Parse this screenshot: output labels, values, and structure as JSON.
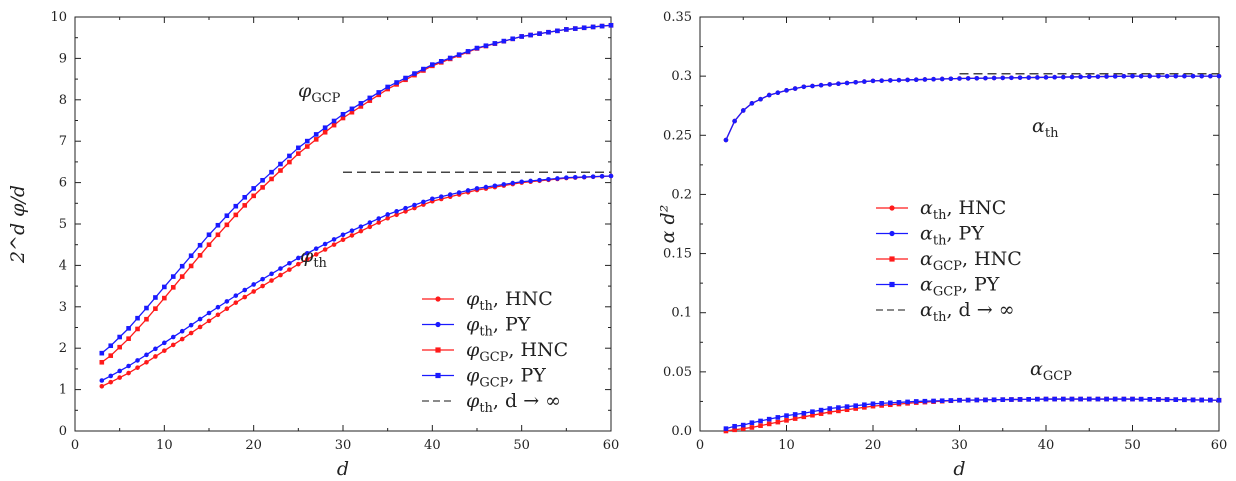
{
  "colors": {
    "HNC": "#ff1a1a",
    "PY": "#1a1aff",
    "asymptote": "#444444"
  },
  "chart_data": [
    {
      "type": "line",
      "xlabel": "d",
      "ylabel": "2^d φ/d",
      "xlim": [
        0,
        60
      ],
      "ylim": [
        0,
        10
      ],
      "xticks": [
        "0",
        "10",
        "20",
        "30",
        "40",
        "50",
        "60"
      ],
      "yticks": [
        "0",
        "1",
        "2",
        "3",
        "4",
        "5",
        "6",
        "7",
        "8",
        "9",
        "10"
      ],
      "x": [
        3,
        4,
        6,
        8,
        10,
        12,
        15,
        18,
        20,
        25,
        30,
        35,
        40,
        45,
        50,
        55,
        60
      ],
      "series": [
        {
          "name": "φ_th, HNC",
          "color": "HNC",
          "marker": "circle",
          "values": [
            1.08,
            1.18,
            1.4,
            1.66,
            1.94,
            2.22,
            2.66,
            3.1,
            3.37,
            4.03,
            4.62,
            5.14,
            5.55,
            5.82,
            6.0,
            6.11,
            6.16
          ]
        },
        {
          "name": "φ_th, PY",
          "color": "PY",
          "marker": "circle",
          "values": [
            1.22,
            1.33,
            1.57,
            1.84,
            2.13,
            2.41,
            2.85,
            3.27,
            3.54,
            4.18,
            4.74,
            5.23,
            5.61,
            5.86,
            6.02,
            6.12,
            6.16
          ]
        },
        {
          "name": "φ_GCP, HNC",
          "color": "HNC",
          "marker": "square",
          "values": [
            1.66,
            1.82,
            2.23,
            2.7,
            3.21,
            3.73,
            4.5,
            5.22,
            5.68,
            6.7,
            7.56,
            8.26,
            8.82,
            9.24,
            9.53,
            9.7,
            9.8
          ]
        },
        {
          "name": "φ_GCP, PY",
          "color": "PY",
          "marker": "square",
          "values": [
            1.88,
            2.06,
            2.48,
            2.97,
            3.48,
            3.98,
            4.74,
            5.43,
            5.86,
            6.84,
            7.65,
            8.31,
            8.85,
            9.25,
            9.53,
            9.7,
            9.8
          ]
        }
      ],
      "asymptote": {
        "name": "φ_th, d → ∞",
        "value": 6.25,
        "x_from": 30,
        "x_to": 60
      },
      "legend_placement": "bottom-right",
      "annotations": [
        {
          "text": "φ",
          "sub": "GCP"
        },
        {
          "text": "φ",
          "sub": "th"
        }
      ]
    },
    {
      "type": "line",
      "xlabel": "d",
      "ylabel": "α d²",
      "xlim": [
        0,
        60
      ],
      "ylim": [
        0,
        0.35
      ],
      "xticks": [
        "0",
        "10",
        "20",
        "30",
        "40",
        "50",
        "60"
      ],
      "yticks": [
        "0.0",
        "0.05",
        "0.1",
        "0.15",
        "0.2",
        "0.25",
        "0.3",
        "0.35"
      ],
      "x": [
        3,
        4,
        5,
        6,
        8,
        10,
        12,
        15,
        20,
        25,
        30,
        40,
        50,
        60
      ],
      "series": [
        {
          "name": "α_th, HNC",
          "color": "HNC",
          "marker": "circle",
          "values": [
            0.246,
            0.262,
            0.271,
            0.277,
            0.284,
            0.288,
            0.291,
            0.293,
            0.296,
            0.297,
            0.298,
            0.299,
            0.3,
            0.3
          ]
        },
        {
          "name": "α_th, PY",
          "color": "PY",
          "marker": "circle",
          "values": [
            0.246,
            0.262,
            0.271,
            0.277,
            0.284,
            0.288,
            0.291,
            0.293,
            0.296,
            0.297,
            0.298,
            0.299,
            0.3,
            0.3
          ]
        },
        {
          "name": "α_GCP, HNC",
          "color": "HNC",
          "marker": "square",
          "values": [
            0.0,
            0.001,
            0.002,
            0.003,
            0.006,
            0.009,
            0.012,
            0.016,
            0.021,
            0.024,
            0.026,
            0.027,
            0.027,
            0.026
          ]
        },
        {
          "name": "α_GCP, PY",
          "color": "PY",
          "marker": "square",
          "values": [
            0.002,
            0.004,
            0.005,
            0.007,
            0.01,
            0.013,
            0.015,
            0.019,
            0.023,
            0.025,
            0.026,
            0.027,
            0.027,
            0.026
          ]
        }
      ],
      "asymptote": {
        "name": "α_th, d → ∞",
        "value": 0.302,
        "x_from": 30,
        "x_to": 60
      },
      "legend_placement": "center",
      "annotations": [
        {
          "text": "α",
          "sub": "th"
        },
        {
          "text": "α",
          "sub": "GCP"
        }
      ]
    }
  ]
}
